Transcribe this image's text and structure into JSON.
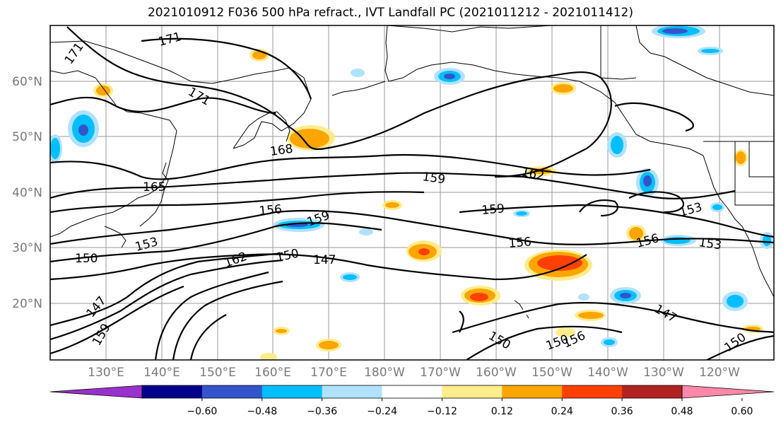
{
  "title": "2021010912 F036 500 hPa refract., IVT Landfall PC (2021011212 - 2021011412)",
  "map": {
    "lat_labels": [
      "60°N",
      "50°N",
      "40°N",
      "30°N",
      "20°N"
    ],
    "lon_labels": [
      "130°E",
      "140°E",
      "150°E",
      "160°E",
      "170°E",
      "180°W",
      "170°W",
      "160°W",
      "150°W",
      "140°W",
      "130°W",
      "120°W"
    ],
    "contour_labels": [
      {
        "text": "171",
        "id": "c171a"
      },
      {
        "text": "171",
        "id": "c171b"
      },
      {
        "text": "171",
        "id": "c171c"
      },
      {
        "text": "168",
        "id": "c168"
      },
      {
        "text": "165",
        "id": "c165"
      },
      {
        "text": "162",
        "id": "c162a"
      },
      {
        "text": "159",
        "id": "c159a"
      },
      {
        "text": "159",
        "id": "c159b"
      },
      {
        "text": "159",
        "id": "c159c"
      },
      {
        "text": "156",
        "id": "c156a"
      },
      {
        "text": "156",
        "id": "c156b"
      },
      {
        "text": "156",
        "id": "c156c"
      },
      {
        "text": "153",
        "id": "c153a"
      },
      {
        "text": "153",
        "id": "c153b"
      },
      {
        "text": "153",
        "id": "c153c"
      },
      {
        "text": "150",
        "id": "c150a"
      },
      {
        "text": "150",
        "id": "c150b"
      },
      {
        "text": "150",
        "id": "c150c"
      },
      {
        "text": "150",
        "id": "c150d"
      },
      {
        "text": "150",
        "id": "c150e"
      },
      {
        "text": "147",
        "id": "c147a"
      },
      {
        "text": "147",
        "id": "c147b"
      },
      {
        "text": "147",
        "id": "c147c"
      },
      {
        "text": "162",
        "id": "c162b"
      },
      {
        "text": "159",
        "id": "c159d"
      },
      {
        "text": "156",
        "id": "c156d"
      }
    ]
  },
  "colorbar": {
    "colors": [
      "#9932cc",
      "#00008b",
      "#3355cc",
      "#00bfff",
      "#b0e2ff",
      "#ffffff",
      "#ffec8b",
      "#ffa500",
      "#ff4000",
      "#b22222",
      "#ff88aa"
    ],
    "labels": [
      "−0.60",
      "−0.48",
      "−0.36",
      "−0.24",
      "−0.12",
      "0.12",
      "0.24",
      "0.36",
      "0.48",
      "0.60"
    ]
  }
}
